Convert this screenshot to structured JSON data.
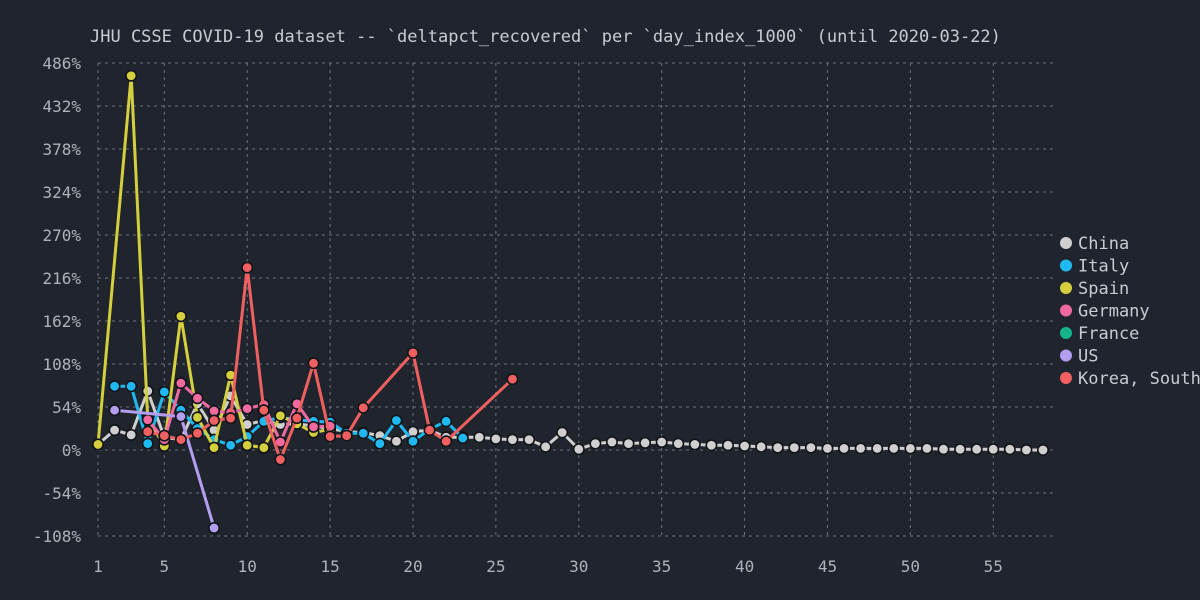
{
  "chart_data": {
    "type": "line",
    "title": "JHU CSSE COVID-19 dataset -- `deltapct_recovered` per `day_index_1000` (until 2020-03-22)",
    "xlabel": "",
    "ylabel": "",
    "xlim": [
      1,
      58
    ],
    "ylim": [
      -108,
      486
    ],
    "xticks": [
      1,
      5,
      10,
      15,
      20,
      25,
      30,
      35,
      40,
      45,
      50,
      55
    ],
    "yticks": [
      -108,
      -54,
      0,
      54,
      108,
      162,
      216,
      270,
      324,
      378,
      432,
      486
    ],
    "ytick_labels": [
      "-108%",
      "-54%",
      "0%",
      "54%",
      "108%",
      "162%",
      "216%",
      "270%",
      "324%",
      "378%",
      "432%",
      "486%"
    ],
    "grid": true,
    "legend_position": "right",
    "series": [
      {
        "name": "China",
        "color": "#cfcfcf",
        "x": [
          1,
          2,
          3,
          4,
          5,
          6,
          7,
          8,
          9,
          10,
          11,
          12,
          13,
          14,
          15,
          16,
          17,
          18,
          19,
          20,
          21,
          22,
          23,
          24,
          25,
          26,
          27,
          28,
          29,
          30,
          31,
          32,
          33,
          34,
          35,
          36,
          37,
          38,
          39,
          40,
          41,
          42,
          43,
          44,
          45,
          46,
          47,
          48,
          49,
          50,
          51,
          52,
          53,
          54,
          55,
          56,
          57,
          58
        ],
        "y": [
          7,
          25,
          19,
          74,
          16,
          13,
          58,
          25,
          68,
          32,
          37,
          32,
          33,
          30,
          27,
          23,
          22,
          18,
          11,
          23,
          25,
          16,
          16,
          16,
          14,
          13,
          13,
          4,
          22,
          1,
          8,
          10,
          8,
          9,
          10,
          8,
          7,
          6,
          6,
          5,
          4,
          3,
          3,
          3,
          2,
          2,
          2,
          2,
          2,
          2,
          2,
          1,
          1,
          1,
          1,
          1,
          0,
          0
        ]
      },
      {
        "name": "Italy",
        "color": "#1fb8f0",
        "x": [
          2,
          3,
          4,
          5,
          6,
          7,
          8,
          9,
          10,
          11,
          12,
          13,
          14,
          15,
          16,
          17,
          18,
          19,
          20,
          21,
          22,
          23
        ],
        "y": [
          80,
          80,
          8,
          73,
          50,
          27,
          13,
          6,
          17,
          36,
          41,
          38,
          36,
          35,
          21,
          21,
          8,
          37,
          11,
          26,
          36,
          15
        ]
      },
      {
        "name": "Spain",
        "color": "#d4cf3e",
        "x": [
          1,
          3,
          4,
          5,
          6,
          7,
          8,
          9,
          10,
          11,
          12,
          13,
          14,
          15
        ],
        "y": [
          7,
          470,
          40,
          5,
          168,
          41,
          3,
          94,
          6,
          3,
          43,
          33,
          22,
          26
        ]
      },
      {
        "name": "Germany",
        "color": "#f06aa0",
        "x": [
          4,
          5,
          6,
          7,
          8,
          9,
          10,
          11,
          12,
          13,
          14,
          15
        ],
        "y": [
          38,
          13,
          84,
          65,
          49,
          47,
          52,
          57,
          10,
          58,
          29,
          30
        ]
      },
      {
        "name": "France",
        "color": "#13b38c",
        "x": [],
        "y": []
      },
      {
        "name": "US",
        "color": "#b39ef0",
        "x": [
          2,
          6,
          8
        ],
        "y": [
          50,
          42,
          -98
        ]
      },
      {
        "name": "Korea, South",
        "color": "#f06060",
        "x": [
          4,
          5,
          6,
          7,
          8,
          9,
          10,
          11,
          12,
          13,
          14,
          15,
          16,
          17,
          20,
          21,
          22,
          26
        ],
        "y": [
          23,
          18,
          13,
          21,
          37,
          40,
          229,
          50,
          -12,
          40,
          109,
          17,
          18,
          53,
          122,
          25,
          11,
          89
        ]
      }
    ]
  }
}
